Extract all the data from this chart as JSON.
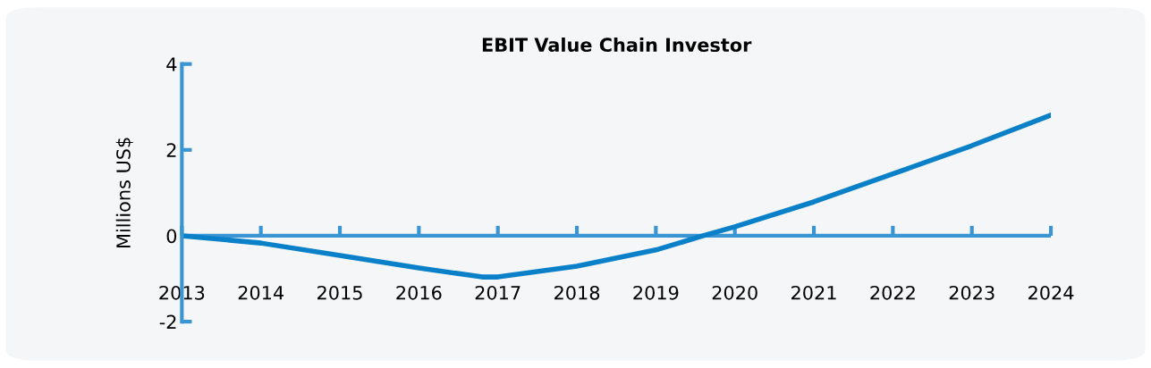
{
  "chart_data": {
    "type": "line",
    "title": "EBIT Value Chain Investor",
    "ylabel": "Millions US$",
    "series": [
      {
        "color": "#0a80c8",
        "x": [
          2013,
          2014,
          2015,
          2016,
          2016.8,
          2017,
          2018,
          2019,
          2019.6,
          2020,
          2021,
          2022,
          2023,
          2024
        ],
        "values": [
          0,
          -0.17,
          -0.46,
          -0.75,
          -0.96,
          -0.96,
          -0.71,
          -0.33,
          0,
          0.21,
          0.79,
          1.44,
          2.1,
          2.81
        ]
      }
    ],
    "xlim": [
      2013,
      2024
    ],
    "xticks": [
      2013,
      2014,
      2015,
      2016,
      2017,
      2018,
      2019,
      2020,
      2021,
      2022,
      2023,
      2024
    ],
    "ylim": [
      -2,
      4
    ],
    "yticks": [
      -2,
      0,
      2,
      4
    ],
    "ref_lines": [
      {
        "axis": "y",
        "value": 0,
        "color": "#3a95d3"
      }
    ],
    "grid": false,
    "legend": false,
    "marker": "none",
    "line_style": "solid"
  }
}
